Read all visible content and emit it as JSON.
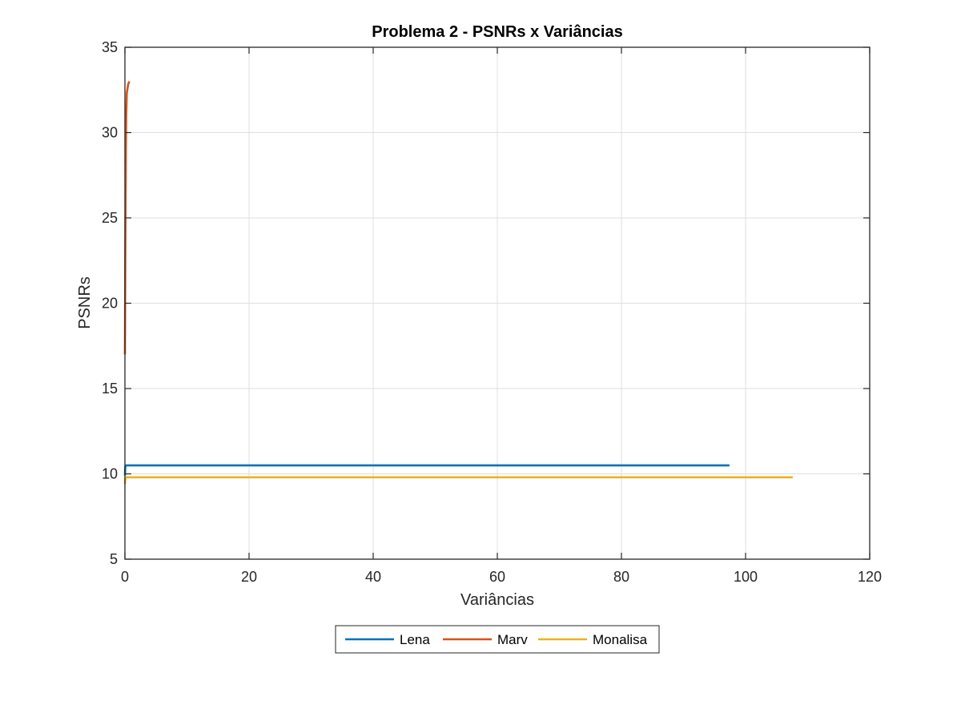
{
  "chart_data": {
    "type": "line",
    "title": "Problema 2 - PSNRs x Variâncias",
    "xlabel": "Variâncias",
    "ylabel": "PSNRs",
    "xlim": [
      0,
      120
    ],
    "ylim": [
      5,
      35
    ],
    "xticks": [
      0,
      20,
      40,
      60,
      80,
      100,
      120
    ],
    "yticks": [
      5,
      10,
      15,
      20,
      25,
      30,
      35
    ],
    "grid": true,
    "legend_position": "bottom-center outside",
    "series": [
      {
        "name": "Lena",
        "color": "#0072BD",
        "x": [
          0.0,
          0.05,
          0.1,
          0.2,
          0.5,
          1,
          5,
          20,
          50,
          97.4
        ],
        "y": [
          9.9,
          10.4,
          10.48,
          10.5,
          10.5,
          10.5,
          10.5,
          10.5,
          10.5,
          10.5
        ]
      },
      {
        "name": "Marv",
        "color": "#D95319",
        "x": [
          0.0,
          0.05,
          0.1,
          0.15,
          0.2,
          0.3,
          0.5,
          0.7
        ],
        "y": [
          17.0,
          22.0,
          26.0,
          29.0,
          31.0,
          32.3,
          32.8,
          33.0
        ]
      },
      {
        "name": "Monalisa",
        "color": "#EDB120",
        "x": [
          0.0,
          0.05,
          0.1,
          0.2,
          0.5,
          1,
          5,
          20,
          50,
          107.6
        ],
        "y": [
          9.4,
          9.7,
          9.78,
          9.8,
          9.8,
          9.8,
          9.8,
          9.8,
          9.8,
          9.8
        ]
      }
    ]
  }
}
